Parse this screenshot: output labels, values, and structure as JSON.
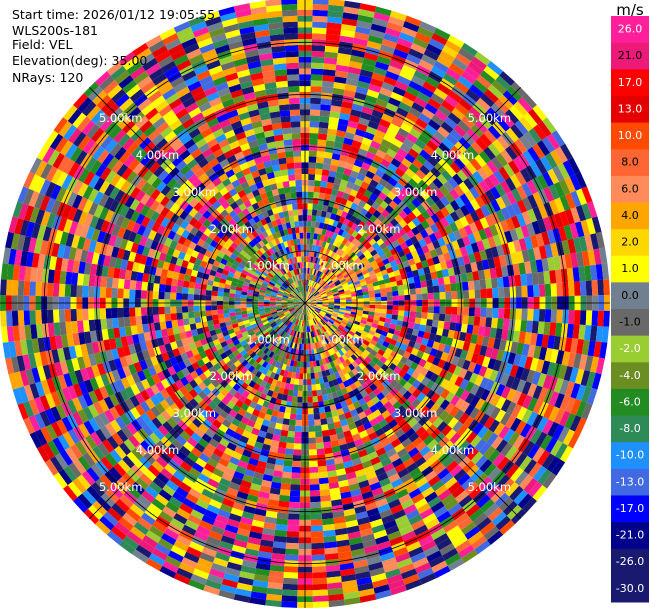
{
  "header": {
    "start_time": "Start time: 2026/01/12 19:05:55",
    "instrument": "WLS200s-181",
    "field": "Field: VEL",
    "elevation": "Elevation(deg): 35.00",
    "nrays": "NRays: 120"
  },
  "chart_data": {
    "type": "heatmap",
    "projection": "polar (PPI)",
    "field": "VEL",
    "units": "m/s",
    "n_rays": 120,
    "elevation_deg": 35.0,
    "range_rings_km": [
      1,
      2,
      3,
      4,
      5
    ],
    "range_ring_labels": [
      "1.00km",
      "2.00km",
      "3.00km",
      "4.00km",
      "5.00km"
    ],
    "max_range_km": 5.85,
    "range_gates": 52,
    "angle_grid_deg": [
      0,
      45,
      90,
      135
    ],
    "colorbar": {
      "unit": "m/s",
      "ticks": [
        "26.0",
        "21.0",
        "17.0",
        "13.0",
        "10.0",
        "8.0",
        "6.0",
        "4.0",
        "2.0",
        "1.0",
        "0.0",
        "-1.0",
        "-2.0",
        "-4.0",
        "-6.0",
        "-8.0",
        "-10.0",
        "-13.0",
        "-17.0",
        "-21.0",
        "-26.0",
        "-30.0"
      ],
      "colors": [
        "#ff1f9a",
        "#ee1a7a",
        "#ff0000",
        "#e40000",
        "#ff4a00",
        "#ff6633",
        "#ff8a5a",
        "#ffa500",
        "#ffd700",
        "#ffff00",
        "#708090",
        "#696969",
        "#9acd32",
        "#6b8e23",
        "#228b22",
        "#2e8b57",
        "#1e90ff",
        "#4169e1",
        "#0000ff",
        "#00008b",
        "#191970",
        "#191970"
      ]
    },
    "field_description": "Radial velocity mostly noise-dominated (random colors) beyond ~1.5 km; near-range region shows yellow/orange (positive) returns to the east and green/blue to the west."
  }
}
